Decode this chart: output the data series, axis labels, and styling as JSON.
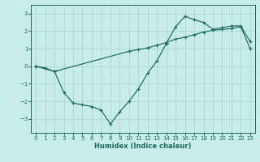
{
  "xlabel": "Humidex (Indice chaleur)",
  "background_color": "#c8ece8",
  "grid_color": "#a8d8d0",
  "line_color": "#1a6b5e",
  "xlim": [
    -0.5,
    23.5
  ],
  "ylim": [
    -3.8,
    3.5
  ],
  "yticks": [
    -3,
    -2,
    -1,
    0,
    1,
    2,
    3
  ],
  "xticks": [
    0,
    1,
    2,
    3,
    4,
    5,
    6,
    7,
    8,
    9,
    10,
    11,
    12,
    13,
    14,
    15,
    16,
    17,
    18,
    19,
    20,
    21,
    22,
    23
  ],
  "line1_x": [
    0,
    1,
    2,
    3,
    4,
    5,
    6,
    7,
    8,
    9,
    10,
    11,
    12,
    13,
    14,
    15,
    16,
    17,
    18,
    19,
    20,
    21,
    22,
    23
  ],
  "line1_y": [
    0.0,
    -0.1,
    -0.3,
    -1.5,
    -2.1,
    -2.2,
    -2.3,
    -2.5,
    -3.3,
    -2.6,
    -2.0,
    -1.3,
    -0.4,
    0.3,
    1.3,
    2.25,
    2.85,
    2.65,
    2.5,
    2.1,
    2.2,
    2.3,
    2.3,
    1.4
  ],
  "line2_x": [
    0,
    2,
    10,
    11,
    12,
    13,
    14,
    15,
    16,
    17,
    18,
    19,
    20,
    21,
    22,
    23
  ],
  "line2_y": [
    0.0,
    -0.3,
    0.85,
    0.95,
    1.05,
    1.2,
    1.35,
    1.55,
    1.65,
    1.8,
    1.95,
    2.05,
    2.1,
    2.15,
    2.25,
    1.0
  ]
}
